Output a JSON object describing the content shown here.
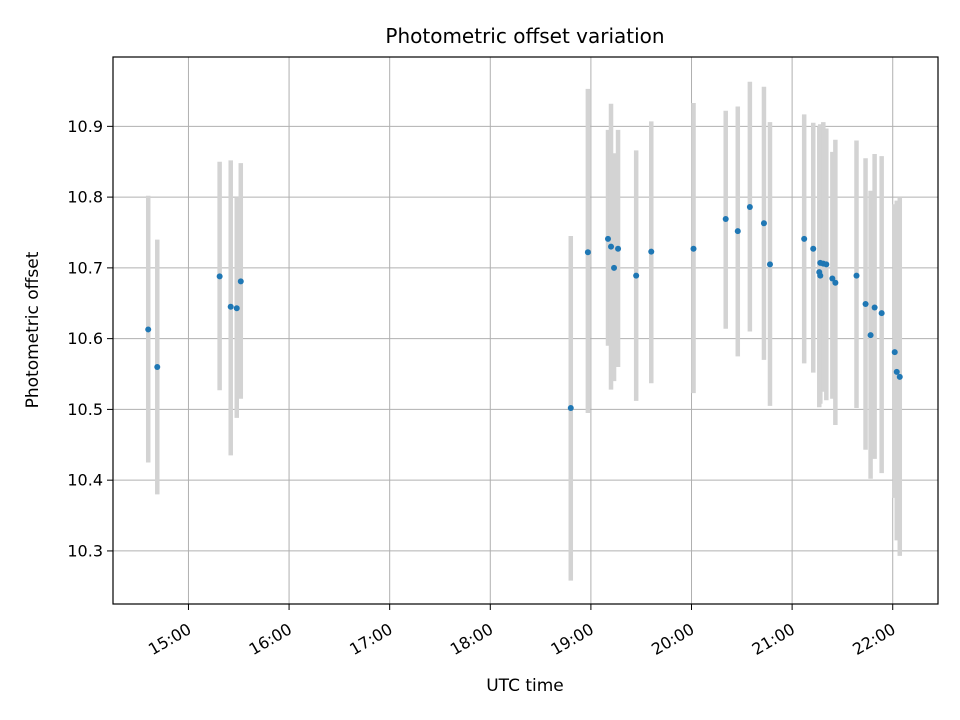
{
  "chart_data": {
    "type": "scatter",
    "title": "Photometric offset variation",
    "xlabel": "UTC time",
    "ylabel": "Photometric offset",
    "x_unit": "hours UTC",
    "xlim": [
      14.25,
      22.45
    ],
    "ylim": [
      10.225,
      10.998
    ],
    "x_ticks": [
      {
        "value": 15,
        "label": "15:00"
      },
      {
        "value": 16,
        "label": "16:00"
      },
      {
        "value": 17,
        "label": "17:00"
      },
      {
        "value": 18,
        "label": "18:00"
      },
      {
        "value": 19,
        "label": "19:00"
      },
      {
        "value": 20,
        "label": "20:00"
      },
      {
        "value": 21,
        "label": "21:00"
      },
      {
        "value": 22,
        "label": "22:00"
      }
    ],
    "y_ticks": [
      {
        "value": 10.3,
        "label": "10.3"
      },
      {
        "value": 10.4,
        "label": "10.4"
      },
      {
        "value": 10.5,
        "label": "10.5"
      },
      {
        "value": 10.6,
        "label": "10.6"
      },
      {
        "value": 10.7,
        "label": "10.7"
      },
      {
        "value": 10.8,
        "label": "10.8"
      },
      {
        "value": 10.9,
        "label": "10.9"
      }
    ],
    "grid": true,
    "marker_color": "#1f77b4",
    "errorbar_color": "#d3d3d3",
    "points": [
      {
        "x": 14.6,
        "y": 10.613,
        "ylo": 10.425,
        "yhi": 10.802
      },
      {
        "x": 14.69,
        "y": 10.56,
        "ylo": 10.38,
        "yhi": 10.74
      },
      {
        "x": 15.31,
        "y": 10.688,
        "ylo": 10.527,
        "yhi": 10.85
      },
      {
        "x": 15.42,
        "y": 10.645,
        "ylo": 10.435,
        "yhi": 10.852
      },
      {
        "x": 15.48,
        "y": 10.643,
        "ylo": 10.488,
        "yhi": 10.8
      },
      {
        "x": 15.52,
        "y": 10.681,
        "ylo": 10.515,
        "yhi": 10.848
      },
      {
        "x": 18.8,
        "y": 10.502,
        "ylo": 10.258,
        "yhi": 10.745
      },
      {
        "x": 18.97,
        "y": 10.722,
        "ylo": 10.495,
        "yhi": 10.953
      },
      {
        "x": 19.17,
        "y": 10.741,
        "ylo": 10.59,
        "yhi": 10.895
      },
      {
        "x": 19.2,
        "y": 10.73,
        "ylo": 10.528,
        "yhi": 10.932
      },
      {
        "x": 19.23,
        "y": 10.7,
        "ylo": 10.54,
        "yhi": 10.862
      },
      {
        "x": 19.27,
        "y": 10.727,
        "ylo": 10.56,
        "yhi": 10.895
      },
      {
        "x": 19.45,
        "y": 10.689,
        "ylo": 10.512,
        "yhi": 10.866
      },
      {
        "x": 19.6,
        "y": 10.723,
        "ylo": 10.537,
        "yhi": 10.907
      },
      {
        "x": 20.02,
        "y": 10.727,
        "ylo": 10.523,
        "yhi": 10.933
      },
      {
        "x": 20.34,
        "y": 10.769,
        "ylo": 10.614,
        "yhi": 10.922
      },
      {
        "x": 20.46,
        "y": 10.752,
        "ylo": 10.575,
        "yhi": 10.928
      },
      {
        "x": 20.58,
        "y": 10.786,
        "ylo": 10.61,
        "yhi": 10.963
      },
      {
        "x": 20.72,
        "y": 10.763,
        "ylo": 10.57,
        "yhi": 10.956
      },
      {
        "x": 20.78,
        "y": 10.705,
        "ylo": 10.505,
        "yhi": 10.906
      },
      {
        "x": 21.12,
        "y": 10.741,
        "ylo": 10.565,
        "yhi": 10.917
      },
      {
        "x": 21.21,
        "y": 10.727,
        "ylo": 10.552,
        "yhi": 10.905
      },
      {
        "x": 21.27,
        "y": 10.694,
        "ylo": 10.503,
        "yhi": 10.9
      },
      {
        "x": 21.28,
        "y": 10.707,
        "ylo": 10.51,
        "yhi": 10.903
      },
      {
        "x": 21.28,
        "y": 10.689,
        "ylo": 10.508,
        "yhi": 10.872
      },
      {
        "x": 21.31,
        "y": 10.706,
        "ylo": 10.525,
        "yhi": 10.906
      },
      {
        "x": 21.34,
        "y": 10.705,
        "ylo": 10.513,
        "yhi": 10.897
      },
      {
        "x": 21.4,
        "y": 10.685,
        "ylo": 10.515,
        "yhi": 10.864
      },
      {
        "x": 21.43,
        "y": 10.679,
        "ylo": 10.478,
        "yhi": 10.881
      },
      {
        "x": 21.64,
        "y": 10.689,
        "ylo": 10.502,
        "yhi": 10.88
      },
      {
        "x": 21.73,
        "y": 10.649,
        "ylo": 10.443,
        "yhi": 10.855
      },
      {
        "x": 21.78,
        "y": 10.605,
        "ylo": 10.402,
        "yhi": 10.809
      },
      {
        "x": 21.82,
        "y": 10.644,
        "ylo": 10.43,
        "yhi": 10.861
      },
      {
        "x": 21.89,
        "y": 10.636,
        "ylo": 10.41,
        "yhi": 10.858
      },
      {
        "x": 22.02,
        "y": 10.581,
        "ylo": 10.375,
        "yhi": 10.79
      },
      {
        "x": 22.04,
        "y": 10.553,
        "ylo": 10.315,
        "yhi": 10.795
      },
      {
        "x": 22.07,
        "y": 10.546,
        "ylo": 10.293,
        "yhi": 10.8
      }
    ]
  }
}
